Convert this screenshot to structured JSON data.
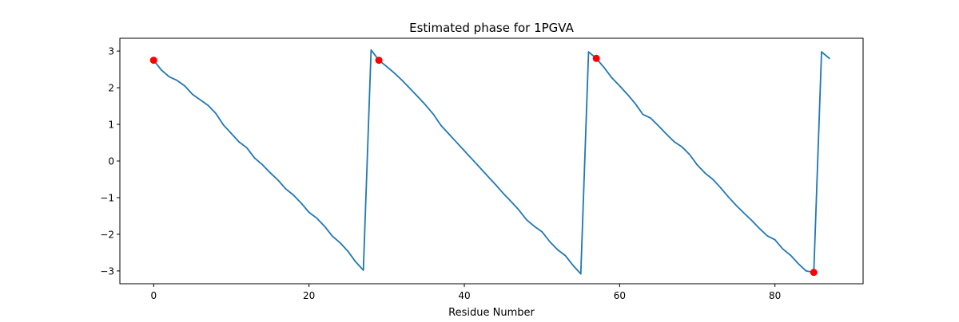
{
  "chart_data": {
    "type": "line",
    "title": "Estimated phase for 1PGVA",
    "xlabel": "Residue Number",
    "ylabel": "",
    "xlim": [
      -4.35,
      91.35
    ],
    "ylim": [
      -3.35,
      3.35
    ],
    "xticks": [
      0,
      20,
      40,
      60,
      80
    ],
    "yticks": [
      -3,
      -2,
      -1,
      0,
      1,
      2,
      3
    ],
    "ytick_labels": [
      "−3",
      "−2",
      "−1",
      "0",
      "1",
      "2",
      "3"
    ],
    "grid": false,
    "legend": "none",
    "series": [
      {
        "kind": "line",
        "color": "#1f77b4",
        "x": [
          0,
          1,
          2,
          3,
          4,
          5,
          6,
          7,
          8,
          9,
          10,
          11,
          12,
          13,
          14,
          15,
          16,
          17,
          18,
          19,
          20,
          21,
          22,
          23,
          24,
          25,
          26,
          27,
          28,
          29,
          30,
          31,
          32,
          33,
          34,
          35,
          36,
          37,
          38,
          39,
          40,
          41,
          42,
          43,
          44,
          45,
          46,
          47,
          48,
          49,
          50,
          51,
          52,
          53,
          54,
          55,
          56,
          57,
          58,
          59,
          60,
          61,
          62,
          63,
          64,
          65,
          66,
          67,
          68,
          69,
          70,
          71,
          72,
          73,
          74,
          75,
          76,
          77,
          78,
          79,
          80,
          81,
          82,
          83,
          84,
          85,
          86,
          87
        ],
        "y": [
          2.75,
          2.48,
          2.3,
          2.2,
          2.05,
          1.82,
          1.67,
          1.52,
          1.3,
          0.98,
          0.75,
          0.52,
          0.36,
          0.08,
          -0.1,
          -0.32,
          -0.52,
          -0.76,
          -0.93,
          -1.15,
          -1.4,
          -1.56,
          -1.78,
          -2.05,
          -2.23,
          -2.46,
          -2.75,
          -2.98,
          3.03,
          2.75,
          2.58,
          2.4,
          2.2,
          1.98,
          1.76,
          1.53,
          1.28,
          0.97,
          0.74,
          0.51,
          0.28,
          0.05,
          -0.18,
          -0.41,
          -0.64,
          -0.88,
          -1.1,
          -1.33,
          -1.6,
          -1.78,
          -1.93,
          -2.2,
          -2.42,
          -2.58,
          -2.85,
          -3.08,
          2.98,
          2.8,
          2.55,
          2.27,
          2.05,
          1.82,
          1.57,
          1.27,
          1.17,
          0.96,
          0.74,
          0.53,
          0.39,
          0.18,
          -0.11,
          -0.33,
          -0.5,
          -0.73,
          -0.98,
          -1.21,
          -1.42,
          -1.62,
          -1.84,
          -2.04,
          -2.15,
          -2.4,
          -2.57,
          -2.8,
          -3.0,
          -3.04,
          2.98,
          2.8
        ]
      },
      {
        "kind": "scatter",
        "color": "#ff0000",
        "x": [
          0,
          29,
          57,
          85
        ],
        "y": [
          2.75,
          2.75,
          2.8,
          -3.04
        ]
      }
    ]
  }
}
